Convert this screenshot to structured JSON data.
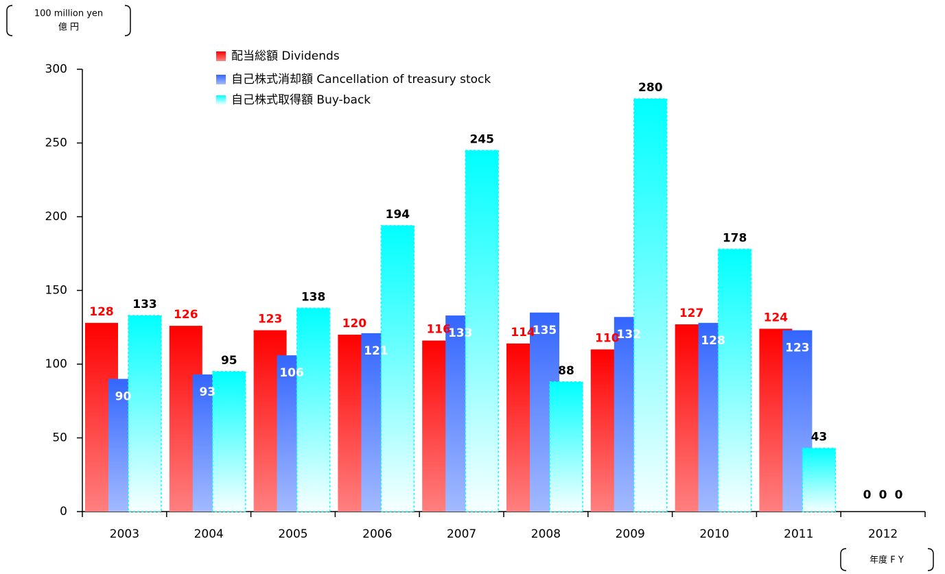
{
  "chart_data": {
    "type": "bar",
    "y_axis_label": "100 million yen",
    "y_axis_label_ja": "億 円",
    "x_axis_label": "年度 F Y",
    "categories": [
      "2003",
      "2004",
      "2005",
      "2006",
      "2007",
      "2008",
      "2009",
      "2010",
      "2011",
      "2012"
    ],
    "series": [
      {
        "name": "配当総額 Dividends",
        "color": "#ff0000",
        "values": [
          128,
          126,
          123,
          120,
          116,
          114,
          110,
          127,
          124,
          0
        ]
      },
      {
        "name": "自己株式消却額 Cancellation of treasury stock",
        "color": "#3366ff",
        "values": [
          90,
          93,
          106,
          121,
          133,
          135,
          132,
          128,
          123,
          0
        ]
      },
      {
        "name": "自己株式取得額 Buy-back",
        "color": "#00ffff",
        "values": [
          133,
          95,
          138,
          194,
          245,
          88,
          280,
          178,
          43,
          0
        ]
      }
    ],
    "ylim": [
      0,
      300
    ],
    "yticks": [
      0,
      50,
      100,
      150,
      200,
      250,
      300
    ]
  }
}
